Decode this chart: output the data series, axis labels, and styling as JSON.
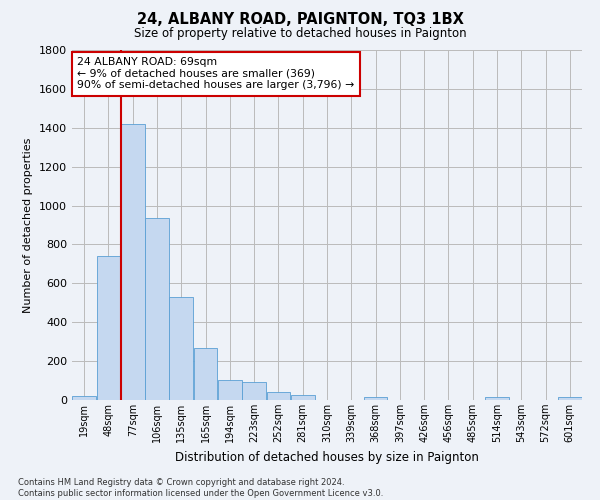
{
  "title1": "24, ALBANY ROAD, PAIGNTON, TQ3 1BX",
  "title2": "Size of property relative to detached houses in Paignton",
  "xlabel": "Distribution of detached houses by size in Paignton",
  "ylabel": "Number of detached properties",
  "bin_labels": [
    "19sqm",
    "48sqm",
    "77sqm",
    "106sqm",
    "135sqm",
    "165sqm",
    "194sqm",
    "223sqm",
    "252sqm",
    "281sqm",
    "310sqm",
    "339sqm",
    "368sqm",
    "397sqm",
    "426sqm",
    "456sqm",
    "485sqm",
    "514sqm",
    "543sqm",
    "572sqm",
    "601sqm"
  ],
  "bar_values": [
    22,
    740,
    1420,
    935,
    530,
    265,
    105,
    93,
    40,
    27,
    0,
    0,
    15,
    0,
    0,
    0,
    0,
    15,
    0,
    0,
    15
  ],
  "bar_color": "#c5d8f0",
  "bar_edgecolor": "#5a9fd4",
  "grid_color": "#bbbbbb",
  "vline_x": 1.5,
  "vline_color": "#cc0000",
  "annotation_text": "24 ALBANY ROAD: 69sqm\n← 9% of detached houses are smaller (369)\n90% of semi-detached houses are larger (3,796) →",
  "annotation_box_color": "#ffffff",
  "annotation_box_edgecolor": "#cc0000",
  "ylim": [
    0,
    1800
  ],
  "yticks": [
    0,
    200,
    400,
    600,
    800,
    1000,
    1200,
    1400,
    1600,
    1800
  ],
  "footnote": "Contains HM Land Registry data © Crown copyright and database right 2024.\nContains public sector information licensed under the Open Government Licence v3.0.",
  "bg_color": "#eef2f8"
}
